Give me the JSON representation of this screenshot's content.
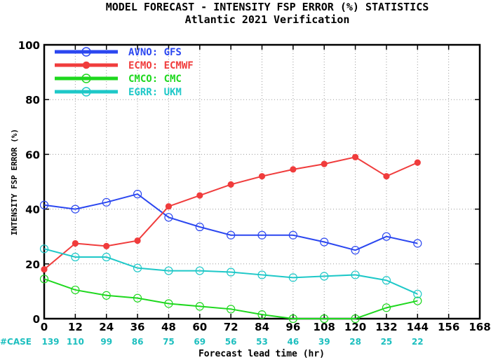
{
  "chart_data": {
    "type": "line",
    "title": "MODEL FORECAST - INTENSITY FSP ERROR (%) STATISTICS",
    "subtitle": "Atlantic 2021 Verification",
    "xlabel": "Forecast lead time (hr)",
    "ylabel": "INTENSITY FSP ERROR (%)",
    "xlim": [
      0,
      168
    ],
    "ylim": [
      0,
      100
    ],
    "x_ticks": [
      0,
      12,
      24,
      36,
      48,
      60,
      72,
      84,
      96,
      108,
      120,
      132,
      144,
      156,
      168
    ],
    "y_ticks": [
      0,
      20,
      40,
      60,
      80,
      100
    ],
    "grid": true,
    "legend_position": "top-left",
    "case_label": "#CASE",
    "case_counts": [
      139,
      110,
      99,
      86,
      75,
      69,
      56,
      53,
      46,
      39,
      28,
      25,
      22
    ],
    "series": [
      {
        "name": "AVNO: GFS",
        "color": "#2b47f0",
        "x": [
          0,
          12,
          24,
          36,
          48,
          60,
          72,
          84,
          96,
          108,
          120,
          132,
          144
        ],
        "values": [
          41.5,
          40,
          42.5,
          45.5,
          37,
          33.5,
          30.5,
          30.5,
          30.5,
          28,
          25,
          30,
          27.5
        ]
      },
      {
        "name": "ECMO: ECMWF",
        "color": "#f03c3c",
        "x": [
          0,
          12,
          24,
          36,
          48,
          60,
          72,
          84,
          96,
          108,
          120,
          132,
          144
        ],
        "values": [
          18,
          27.5,
          26.5,
          28.5,
          41,
          45,
          49,
          52,
          54.5,
          56.5,
          59,
          52,
          57
        ]
      },
      {
        "name": "CMCO: CMC",
        "color": "#1ed81e",
        "x": [
          0,
          12,
          24,
          36,
          48,
          60,
          72,
          84,
          96,
          108,
          120,
          132,
          144
        ],
        "values": [
          14.5,
          10.5,
          8.5,
          7.5,
          5.5,
          4.5,
          3.5,
          1.5,
          0,
          0,
          0,
          4,
          6.5
        ]
      },
      {
        "name": "EGRR: UKM",
        "color": "#1ec8c8",
        "x": [
          0,
          12,
          24,
          36,
          48,
          60,
          72,
          84,
          96,
          108,
          120,
          132,
          144
        ],
        "values": [
          25.5,
          22.5,
          22.5,
          18.5,
          17.5,
          17.5,
          17,
          16,
          15,
          15.5,
          16,
          14,
          9
        ]
      }
    ]
  }
}
